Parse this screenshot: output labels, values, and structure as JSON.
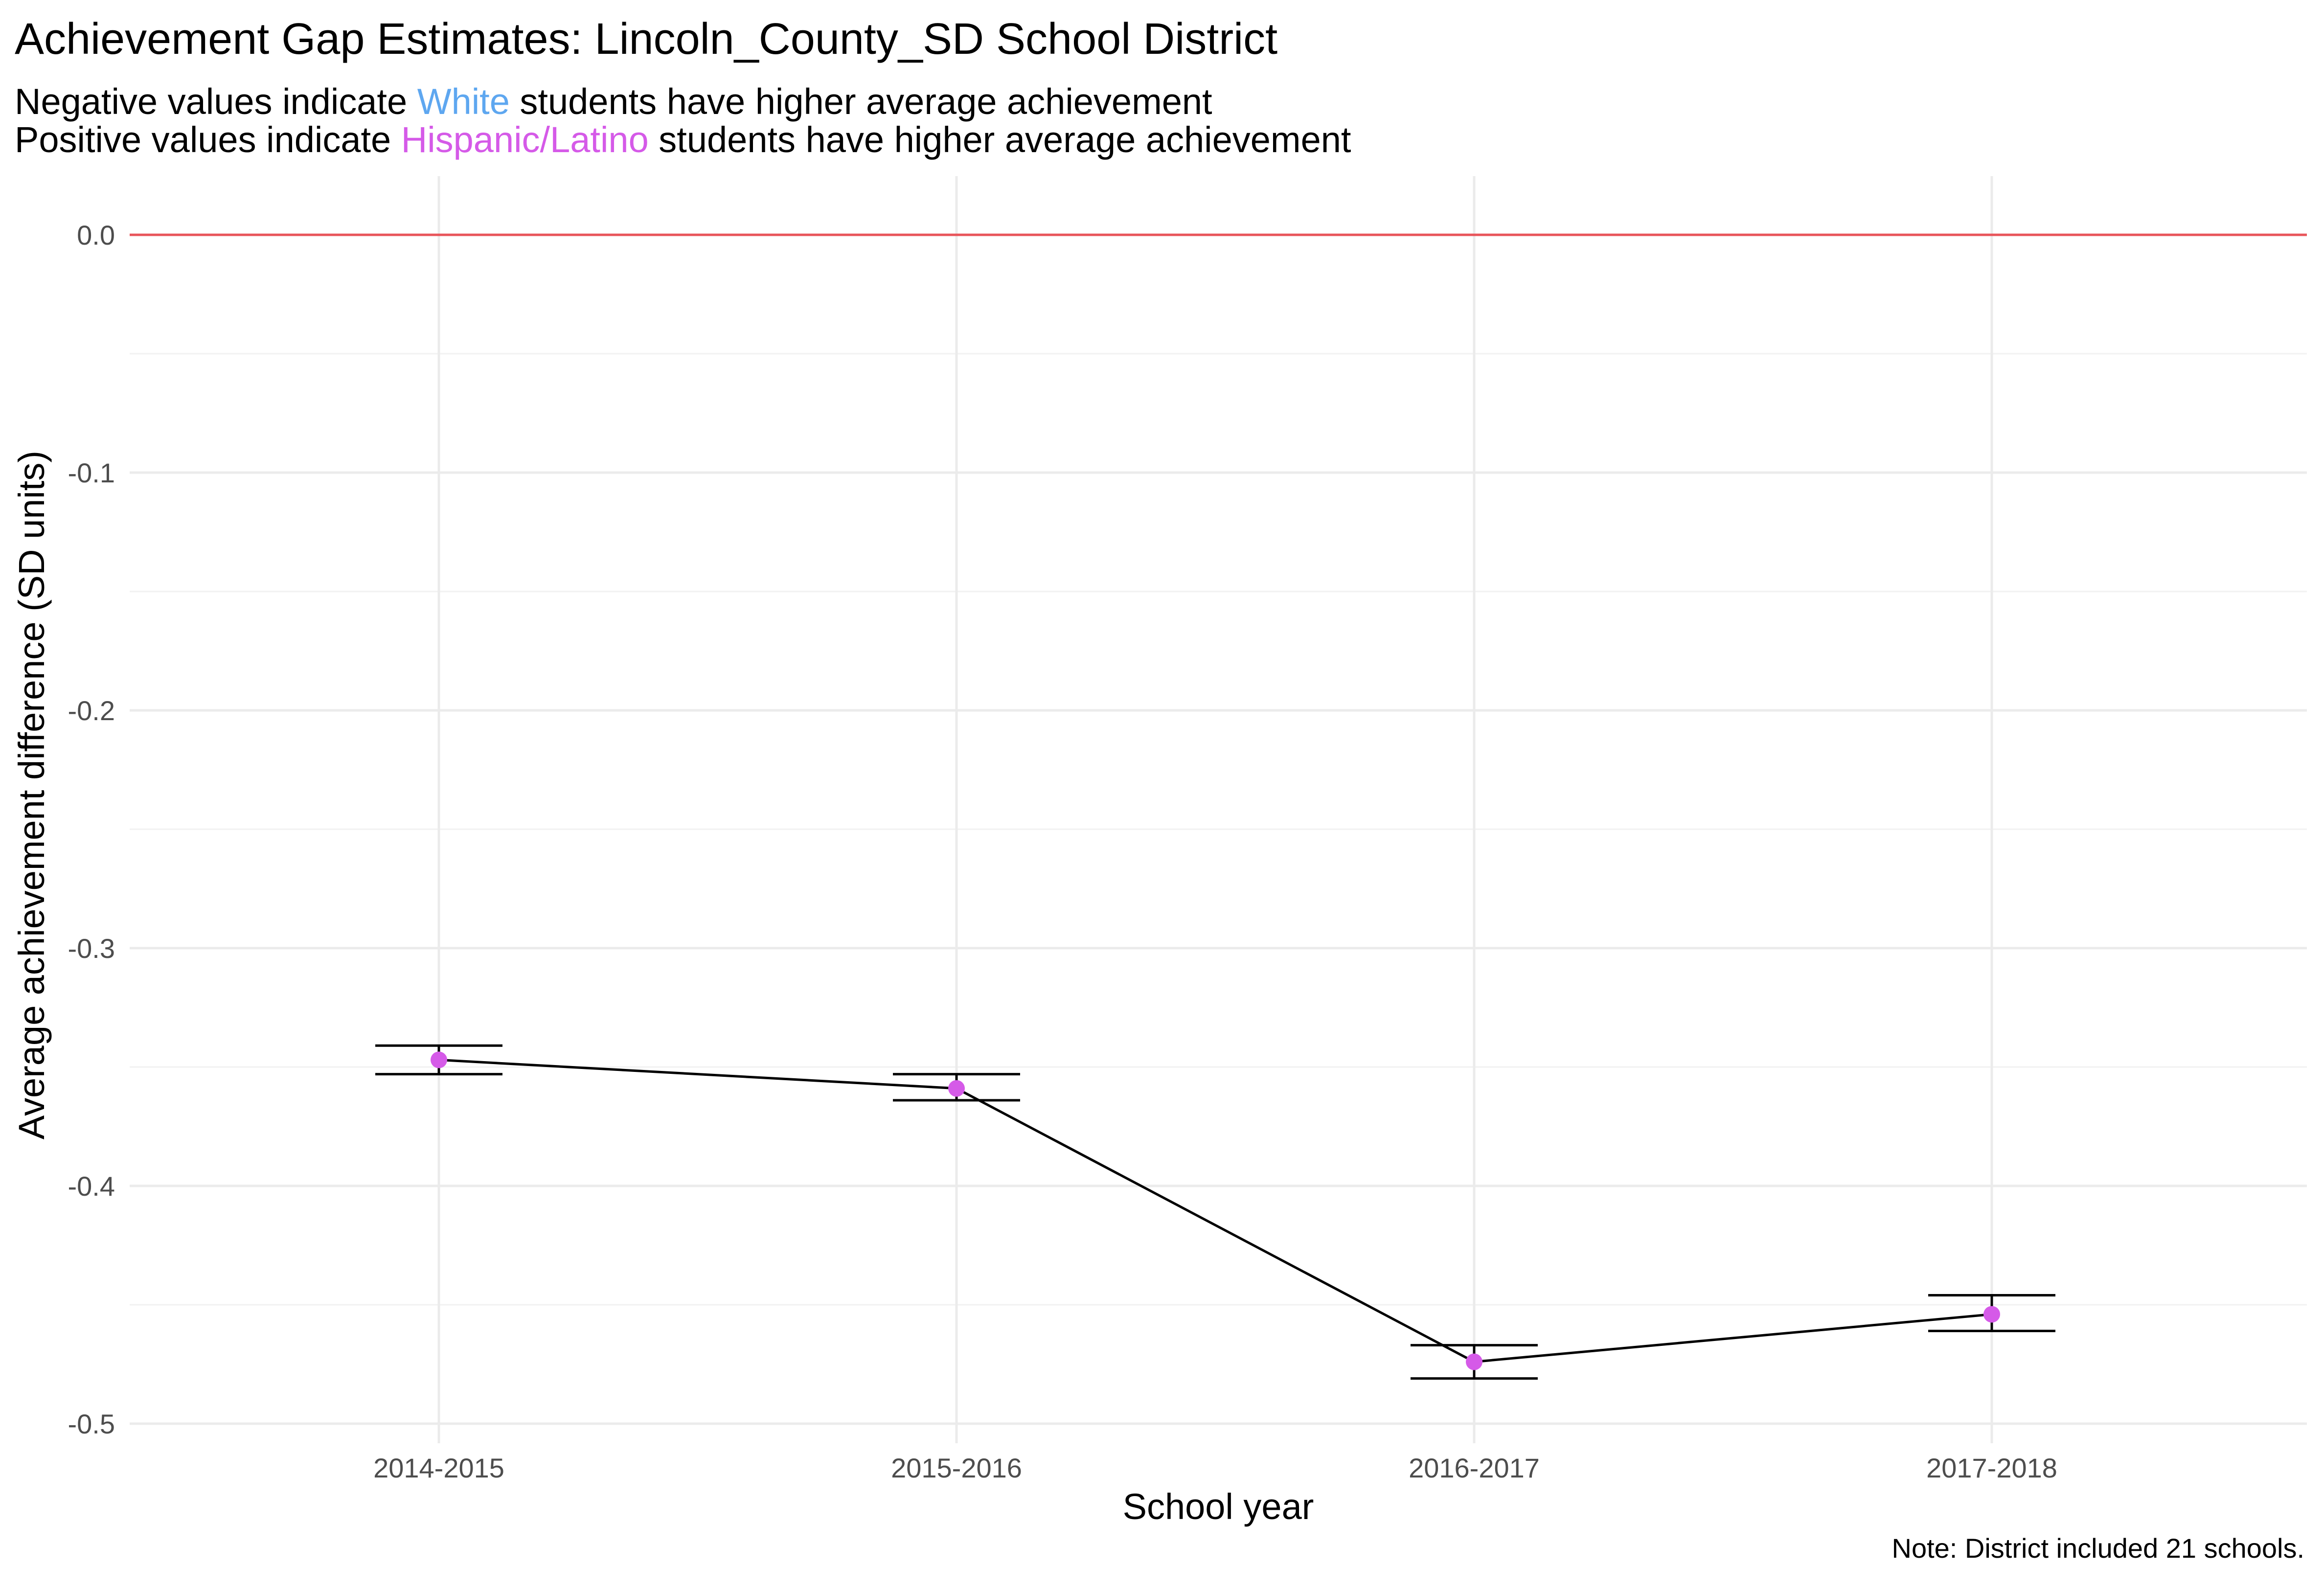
{
  "title": "Achievement Gap Estimates: Lincoln_County_SD  School District",
  "subtitle": {
    "line1": {
      "before": "Negative values indicate ",
      "group": "White",
      "after": " students  have higher average achievement"
    },
    "line2": {
      "before": "Positive values indicate ",
      "group": "Hispanic/Latino",
      "after": " students  have higher average achievement"
    }
  },
  "caption": "Note: District included 21 schools.",
  "colors": {
    "white_group": "#5ea7f0",
    "latino_group": "#d55ae8",
    "zero_line": "#e8545a",
    "line": "#000000",
    "point": "#d55ae8",
    "grid": "#ebebeb"
  },
  "chart_data": {
    "type": "line",
    "title": "Achievement Gap Estimates: Lincoln_County_SD  School District",
    "xlabel": "School year",
    "ylabel": "Average achievement difference (SD units)",
    "categories": [
      "2014-2015",
      "2015-2016",
      "2016-2017",
      "2017-2018"
    ],
    "values": [
      -0.347,
      -0.359,
      -0.474,
      -0.454
    ],
    "error_low": [
      -0.353,
      -0.364,
      -0.481,
      -0.461
    ],
    "error_high": [
      -0.341,
      -0.353,
      -0.467,
      -0.446
    ],
    "ylim": [
      -0.5,
      0.0
    ],
    "yticks": [
      "0.0",
      "-0.1",
      "-0.2",
      "-0.3",
      "-0.4",
      "-0.5"
    ],
    "reference_line": 0.0,
    "grid": true,
    "legend": "none"
  }
}
